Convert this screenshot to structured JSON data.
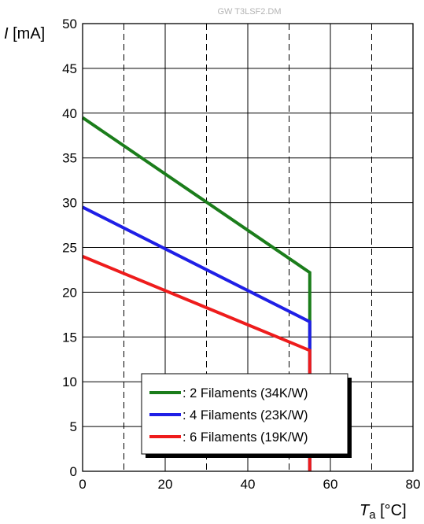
{
  "chart_data": {
    "type": "line",
    "watermark": "GW T3LSF2.DM",
    "ylabel": {
      "symbol": "I",
      "unit": " [mA]"
    },
    "xlabel": {
      "symbol": "T",
      "subscript": "a",
      "unit": " [°C]"
    },
    "xlim": [
      0,
      80
    ],
    "ylim": [
      0,
      50
    ],
    "x_ticks": [
      0,
      20,
      40,
      60,
      80
    ],
    "y_ticks": [
      0,
      5,
      10,
      15,
      20,
      25,
      30,
      35,
      40,
      45,
      50
    ],
    "grid": {
      "horizontal": "solid",
      "vertical_solid": [
        20,
        40,
        60
      ],
      "vertical_dashed": [
        10,
        30,
        50,
        70
      ]
    },
    "legend_position": "bottom-center",
    "series": [
      {
        "name": ": 2 Filaments (34K/W)",
        "color": "#1b7d1b",
        "points": [
          [
            0,
            39.5
          ],
          [
            55,
            22.2
          ],
          [
            55,
            0
          ]
        ]
      },
      {
        "name": ": 4 Filaments (23K/W)",
        "color": "#1f1fe6",
        "points": [
          [
            0,
            29.5
          ],
          [
            55,
            16.7
          ],
          [
            55,
            0
          ]
        ]
      },
      {
        "name": ": 6 Filaments (19K/W)",
        "color": "#ee1c1c",
        "points": [
          [
            0,
            24
          ],
          [
            55,
            13.5
          ],
          [
            55,
            0
          ]
        ]
      }
    ]
  }
}
